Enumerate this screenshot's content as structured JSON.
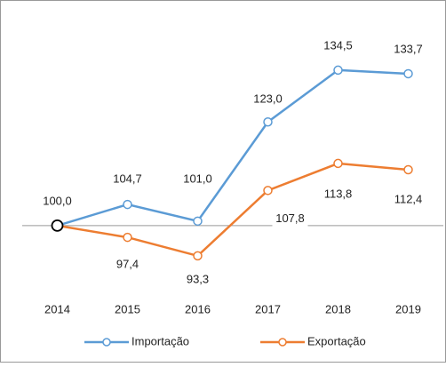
{
  "chart_data": {
    "type": "line",
    "categories": [
      "2014",
      "2015",
      "2016",
      "2017",
      "2018",
      "2019"
    ],
    "series": [
      {
        "name": "Importação",
        "color": "#5b9bd5",
        "values": [
          100.0,
          104.7,
          101.0,
          123.0,
          134.5,
          133.7
        ],
        "value_labels": [
          "100,0",
          "104,7",
          "101,0",
          "123,0",
          "134,5",
          "133,7"
        ]
      },
      {
        "name": "Exportação",
        "color": "#ed7d31",
        "values": [
          100.0,
          97.4,
          93.3,
          107.8,
          113.8,
          112.4
        ],
        "value_labels": [
          null,
          "97,4",
          "93,3",
          "107,8",
          "113,8",
          "112,4"
        ]
      }
    ],
    "ylim": [
      85,
      140
    ],
    "axis_crossing": 100,
    "legend": "bottom"
  }
}
